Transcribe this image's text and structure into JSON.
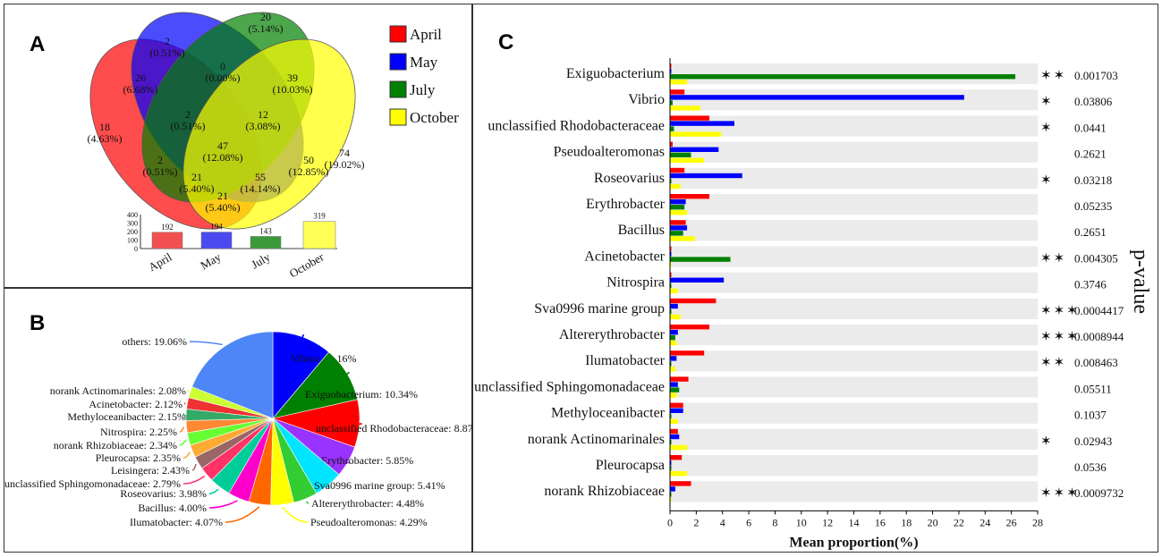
{
  "panels": {
    "a": "A",
    "b": "B",
    "c": "C"
  },
  "chart_data": [
    {
      "type": "venn",
      "panel": "A",
      "sets": [
        {
          "name": "April",
          "color": "#ff0000"
        },
        {
          "name": "May",
          "color": "#0000ff"
        },
        {
          "name": "July",
          "color": "#008000"
        },
        {
          "name": "October",
          "color": "#ffff00"
        }
      ],
      "regions": [
        {
          "id": "may_only",
          "count": "2",
          "pct": "(0.51%)"
        },
        {
          "id": "july_only",
          "count": "20",
          "pct": "(5.14%)"
        },
        {
          "id": "may_july",
          "count": "0",
          "pct": "(0.00%)"
        },
        {
          "id": "april_may",
          "count": "26",
          "pct": "(6.68%)"
        },
        {
          "id": "july_october",
          "count": "39",
          "pct": "(10.03%)"
        },
        {
          "id": "april_only",
          "count": "18",
          "pct": "(4.63%)"
        },
        {
          "id": "october_only",
          "count": "74",
          "pct": "(19.02%)"
        },
        {
          "id": "april_may_july",
          "count": "2",
          "pct": "(0.51%)"
        },
        {
          "id": "may_july_october",
          "count": "12",
          "pct": "(3.08%)"
        },
        {
          "id": "all",
          "count": "47",
          "pct": "(12.08%)"
        },
        {
          "id": "april_july",
          "count": "2",
          "pct": "(0.51%)"
        },
        {
          "id": "april_may_july_oct_left",
          "count": "21",
          "pct": "(5.40%)"
        },
        {
          "id": "april_july_october",
          "count": "55",
          "pct": "(14.14%)"
        },
        {
          "id": "may_october",
          "count": "50",
          "pct": "(12.85%)"
        },
        {
          "id": "april_october",
          "count": "21",
          "pct": "(5.40%)"
        }
      ]
    },
    {
      "type": "bar",
      "panel": "A-inset",
      "categories": [
        "April",
        "May",
        "July",
        "October"
      ],
      "values": [
        192,
        194,
        143,
        319
      ],
      "colors": [
        "#f25050",
        "#4a4af0",
        "#3a9a3a",
        "#ffff55"
      ],
      "ylim": [
        0,
        400
      ],
      "yticks": [
        "0",
        "100",
        "200",
        "300",
        "400"
      ]
    },
    {
      "type": "pie",
      "panel": "B",
      "slices": [
        {
          "label": "Vibrio: 11.16%",
          "value": 11.16,
          "color": "#0000ff"
        },
        {
          "label": "Exiguobacterium: 10.34%",
          "value": 10.34,
          "color": "#008000"
        },
        {
          "label": "unclassified  Rhodobacteraceae: 8.87%",
          "value": 8.87,
          "color": "#ff0000"
        },
        {
          "label": "Erythrobacter: 5.85%",
          "value": 5.85,
          "color": "#9933ff"
        },
        {
          "label": "Sva0996  marine  group: 5.41%",
          "value": 5.41,
          "color": "#00e5ff"
        },
        {
          "label": "Altererythrobacter: 4.48%",
          "value": 4.48,
          "color": "#33cc33"
        },
        {
          "label": "Pseudoalteromonas: 4.29%",
          "value": 4.29,
          "color": "#ffff00"
        },
        {
          "label": "Ilumatobacter: 4.07%",
          "value": 4.07,
          "color": "#ff6600"
        },
        {
          "label": "Bacillus: 4.00%",
          "value": 4.0,
          "color": "#ff00cc"
        },
        {
          "label": "Roseovarius: 3.98%",
          "value": 3.98,
          "color": "#00cc99"
        },
        {
          "label": "unclassified  Sphingomonadaceae: 2.79%",
          "value": 2.79,
          "color": "#ff3366"
        },
        {
          "label": "Leisingera: 2.43%",
          "value": 2.43,
          "color": "#996666"
        },
        {
          "label": "Pleurocapsa: 2.35%",
          "value": 2.35,
          "color": "#ffaa33"
        },
        {
          "label": "norank  Rhizobiaceae: 2.34%",
          "value": 2.34,
          "color": "#66ff33"
        },
        {
          "label": "Nitrospira: 2.25%",
          "value": 2.25,
          "color": "#ff8833"
        },
        {
          "label": "Methyloceanibacter: 2.15%",
          "value": 2.15,
          "color": "#33aa66"
        },
        {
          "label": "Acinetobacter: 2.12%",
          "value": 2.12,
          "color": "#ee3333"
        },
        {
          "label": "norank  Actinomarinales: 2.08%",
          "value": 2.08,
          "color": "#ccff33"
        },
        {
          "label": "others: 19.06%",
          "value": 19.06,
          "color": "#4f86f7"
        }
      ]
    },
    {
      "type": "bar",
      "panel": "C",
      "orientation": "horizontal",
      "xlabel": "Mean proportion(%)",
      "ylabel": "p-value",
      "xlim": [
        0,
        28
      ],
      "xticks": [
        "0",
        "2",
        "4",
        "6",
        "8",
        "10",
        "12",
        "14",
        "16",
        "18",
        "20",
        "22",
        "24",
        "26",
        "28"
      ],
      "series": [
        {
          "name": "April",
          "color": "#ff0000"
        },
        {
          "name": "May",
          "color": "#0000ff"
        },
        {
          "name": "July",
          "color": "#008000"
        },
        {
          "name": "October",
          "color": "#ffff00"
        }
      ],
      "categories": [
        {
          "name": "Exiguobacterium",
          "values": [
            0.1,
            0.1,
            26.3,
            1.3
          ],
          "stars": "✶✶",
          "p": "0.001703"
        },
        {
          "name": "Vibrio",
          "values": [
            1.1,
            22.4,
            0.2,
            2.3
          ],
          "stars": "✶",
          "p": "0.03806"
        },
        {
          "name": "unclassified  Rhodobacteraceae",
          "values": [
            3.0,
            4.9,
            0.3,
            3.9
          ],
          "stars": "✶",
          "p": "0.0441"
        },
        {
          "name": "Pseudoalteromonas",
          "values": [
            0.2,
            3.7,
            1.6,
            2.6
          ],
          "stars": "",
          "p": "0.2621"
        },
        {
          "name": "Roseovarius",
          "values": [
            1.1,
            5.5,
            0.1,
            0.8
          ],
          "stars": "✶",
          "p": "0.03218"
        },
        {
          "name": "Erythrobacter",
          "values": [
            3.0,
            1.2,
            1.1,
            1.3
          ],
          "stars": "",
          "p": "0.05235"
        },
        {
          "name": "Bacillus",
          "values": [
            1.2,
            1.3,
            1.0,
            1.9
          ],
          "stars": "",
          "p": "0.2651"
        },
        {
          "name": "Acinetobacter",
          "values": [
            0.1,
            0.1,
            4.6,
            0.1
          ],
          "stars": "✶✶",
          "p": "0.004305"
        },
        {
          "name": "Nitrospira",
          "values": [
            0.1,
            4.1,
            0.1,
            0.6
          ],
          "stars": "",
          "p": "0.3746"
        },
        {
          "name": "Sva0996  marine  group",
          "values": [
            3.5,
            0.6,
            0.1,
            0.8
          ],
          "stars": "✶✶✶",
          "p": "0.0004417"
        },
        {
          "name": "Altererythrobacter",
          "values": [
            3.0,
            0.6,
            0.4,
            0.5
          ],
          "stars": "✶✶✶",
          "p": "0.0008944"
        },
        {
          "name": "Ilumatobacter",
          "values": [
            2.6,
            0.5,
            0.1,
            0.4
          ],
          "stars": "✶✶",
          "p": "0.008463"
        },
        {
          "name": "unclassified  Sphingomonadaceae",
          "values": [
            1.4,
            0.6,
            0.7,
            0.5
          ],
          "stars": "",
          "p": "0.05511"
        },
        {
          "name": "Methyloceanibacter",
          "values": [
            1.0,
            1.0,
            0.1,
            0.6
          ],
          "stars": "",
          "p": "0.1037"
        },
        {
          "name": "norank  Actinomarinales",
          "values": [
            0.6,
            0.7,
            0.1,
            1.3
          ],
          "stars": "✶",
          "p": "0.02943"
        },
        {
          "name": "Pleurocapsa",
          "values": [
            0.9,
            0.1,
            0.1,
            1.3
          ],
          "stars": "",
          "p": "0.0536"
        },
        {
          "name": "norank  Rhizobiaceae",
          "values": [
            1.6,
            0.4,
            0.1,
            0.1
          ],
          "stars": "✶✶✶",
          "p": "0.0009732"
        }
      ]
    }
  ]
}
